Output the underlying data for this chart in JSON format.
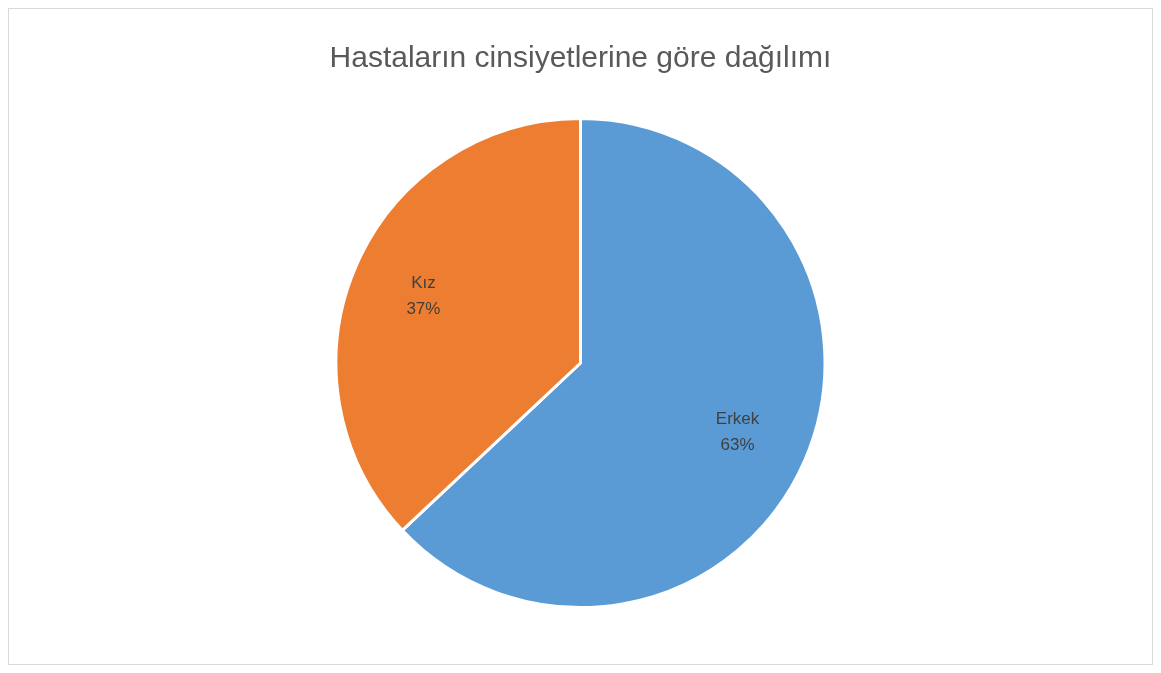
{
  "chart_data": {
    "type": "pie",
    "title": "Hastaların cinsiyetlerine göre dağılımı",
    "categories": [
      "Erkek",
      "Kız"
    ],
    "values": [
      63,
      37
    ],
    "colors": [
      "#5b9bd5",
      "#ed7d31"
    ],
    "value_labels": [
      "63%",
      "37%"
    ],
    "legend": false
  }
}
